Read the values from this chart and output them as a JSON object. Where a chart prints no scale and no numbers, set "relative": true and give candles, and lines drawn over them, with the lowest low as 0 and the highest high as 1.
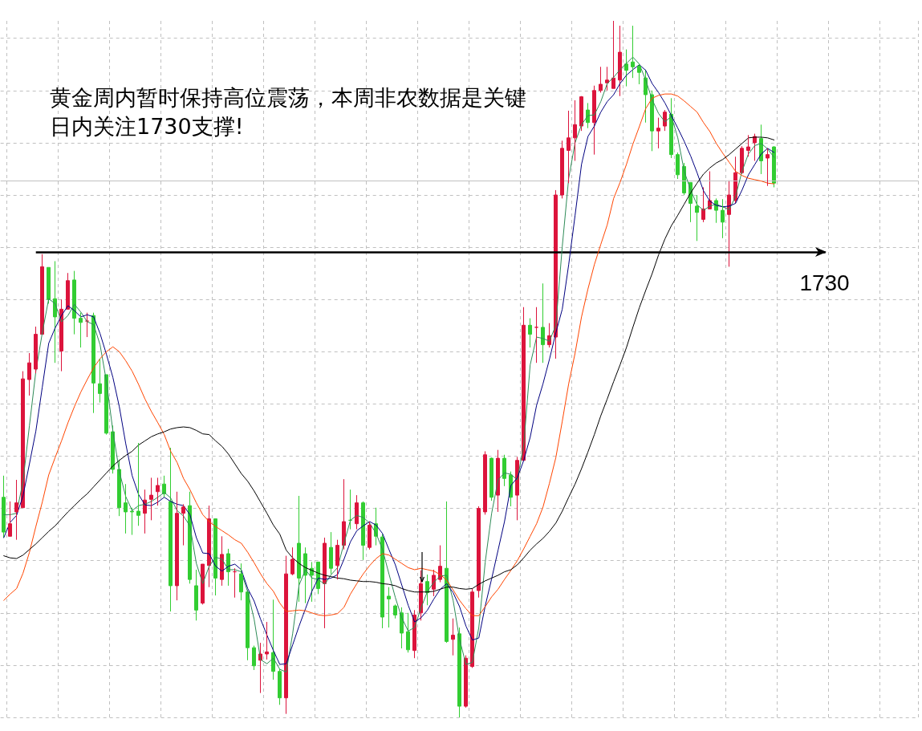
{
  "chart_data": {
    "type": "candlestick",
    "relative": true,
    "grid": true,
    "marker": "none",
    "annotations": [
      "黄金周内暂时保持高位震荡，本周非农数据是关键",
      "日内关注1730支撑!",
      "1730"
    ],
    "categories": [
      null,
      null,
      null,
      null,
      null,
      null,
      null,
      null,
      null,
      null,
      null,
      null,
      null,
      null,
      null,
      null,
      null,
      null,
      null,
      null,
      null,
      null,
      null,
      null,
      null,
      null,
      null,
      null,
      null,
      null,
      null,
      null,
      null,
      null,
      null,
      null,
      null,
      null,
      null,
      null,
      null,
      null,
      null,
      null,
      null,
      null,
      null,
      null,
      null,
      null,
      null,
      null,
      null,
      null,
      null,
      null,
      null,
      null,
      null,
      null,
      null,
      null,
      null,
      null,
      null,
      null,
      null,
      null,
      null,
      null,
      null,
      null,
      null,
      null,
      null,
      null,
      null,
      null,
      null,
      null,
      null,
      null,
      null,
      null,
      null,
      null,
      null,
      null,
      null,
      null,
      null,
      null,
      null,
      null,
      null,
      null,
      null,
      null,
      null,
      null,
      null,
      null,
      null,
      null,
      null,
      null,
      null,
      null,
      null,
      null,
      null,
      null,
      null,
      null,
      null,
      null,
      null,
      null,
      null,
      null,
      null,
      null,
      null,
      null,
      null,
      null,
      null,
      null,
      null,
      null,
      null,
      null,
      null,
      null,
      null,
      null,
      null,
      null,
      null,
      null,
      null,
      null,
      null
    ],
    "ohlc": [
      [
        0.316,
        0.347,
        0.258,
        0.266
      ],
      [
        0.26,
        0.31,
        0.26,
        0.278
      ],
      [
        0.295,
        0.341,
        0.255,
        0.308
      ],
      [
        0.301,
        0.497,
        0.301,
        0.486
      ],
      [
        0.485,
        0.523,
        0.462,
        0.509
      ],
      [
        0.5,
        0.561,
        0.494,
        0.55
      ],
      [
        0.55,
        0.665,
        0.55,
        0.647
      ],
      [
        0.646,
        0.646,
        0.594,
        0.6
      ],
      [
        0.601,
        0.655,
        0.509,
        0.575
      ],
      [
        0.526,
        0.6,
        0.497,
        0.586
      ],
      [
        0.586,
        0.638,
        0.586,
        0.627
      ],
      [
        0.628,
        0.641,
        0.55,
        0.573
      ],
      [
        0.573,
        0.581,
        0.531,
        0.567
      ],
      [
        0.569,
        0.581,
        0.546,
        0.569
      ],
      [
        0.577,
        0.581,
        0.437,
        0.48
      ],
      [
        0.479,
        0.515,
        0.452,
        0.465
      ],
      [
        0.492,
        0.492,
        0.406,
        0.408
      ],
      [
        0.41,
        0.419,
        0.35,
        0.356
      ],
      [
        0.356,
        0.37,
        0.289,
        0.301
      ],
      [
        0.308,
        0.335,
        0.264,
        0.295
      ],
      [
        0.296,
        0.301,
        0.262,
        0.295
      ],
      [
        0.296,
        0.394,
        0.275,
        0.29
      ],
      [
        0.293,
        0.327,
        0.264,
        0.312
      ],
      [
        0.313,
        0.344,
        0.283,
        0.319
      ],
      [
        0.324,
        0.344,
        0.304,
        0.333
      ],
      [
        0.335,
        0.347,
        0.316,
        0.321
      ],
      [
        0.31,
        0.387,
        0.152,
        0.189
      ],
      [
        0.189,
        0.324,
        0.168,
        0.293
      ],
      [
        0.293,
        0.306,
        0.247,
        0.302
      ],
      [
        0.304,
        0.324,
        0.192,
        0.198
      ],
      [
        0.189,
        0.212,
        0.139,
        0.154
      ],
      [
        0.164,
        0.22,
        0.162,
        0.22
      ],
      [
        0.218,
        0.304,
        0.187,
        0.285
      ],
      [
        0.285,
        0.285,
        0.175,
        0.2
      ],
      [
        0.198,
        0.26,
        0.189,
        0.234
      ],
      [
        0.235,
        0.242,
        0.189,
        0.209
      ],
      [
        0.209,
        0.214,
        0.172,
        0.209
      ],
      [
        0.206,
        0.221,
        0.168,
        0.18
      ],
      [
        0.18,
        0.183,
        0.082,
        0.1
      ],
      [
        0.1,
        0.103,
        0.068,
        0.074
      ],
      [
        0.082,
        0.107,
        0.035,
        0.091
      ],
      [
        0.091,
        0.137,
        0.083,
        0.094
      ],
      [
        0.093,
        0.169,
        0.054,
        0.066
      ],
      [
        0.066,
        0.07,
        0.018,
        0.028
      ],
      [
        0.028,
        0.232,
        0.005,
        0.206
      ],
      [
        0.206,
        0.244,
        0.204,
        0.227
      ],
      [
        0.25,
        0.318,
        0.166,
        0.2
      ],
      [
        0.235,
        0.244,
        0.164,
        0.204
      ],
      [
        0.214,
        0.223,
        0.166,
        0.204
      ],
      [
        0.223,
        0.223,
        0.177,
        0.185
      ],
      [
        0.192,
        0.258,
        0.128,
        0.25
      ],
      [
        0.244,
        0.266,
        0.206,
        0.214
      ],
      [
        0.218,
        0.255,
        0.198,
        0.247
      ],
      [
        0.247,
        0.342,
        0.241,
        0.281
      ],
      [
        0.283,
        0.327,
        0.27,
        0.283
      ],
      [
        0.278,
        0.319,
        0.27,
        0.308
      ],
      [
        0.308,
        0.31,
        0.226,
        0.247
      ],
      [
        0.244,
        0.281,
        0.241,
        0.276
      ],
      [
        0.278,
        0.301,
        0.247,
        0.26
      ],
      [
        0.259,
        0.263,
        0.128,
        0.144
      ],
      [
        0.174,
        0.187,
        0.129,
        0.17
      ],
      [
        0.16,
        0.162,
        0.142,
        0.147
      ],
      [
        0.15,
        0.158,
        0.099,
        0.121
      ],
      [
        0.123,
        0.15,
        0.093,
        0.097
      ],
      [
        0.096,
        0.154,
        0.085,
        0.147
      ],
      [
        0.15,
        0.211,
        0.139,
        0.192
      ],
      [
        0.195,
        0.205,
        0.161,
        0.179
      ],
      [
        0.184,
        0.212,
        0.174,
        0.204
      ],
      [
        0.198,
        0.247,
        0.194,
        0.217
      ],
      [
        0.214,
        0.31,
        0.107,
        0.109
      ],
      [
        0.112,
        0.142,
        0.089,
        0.118
      ],
      [
        0.12,
        0.129,
        0,
        0.016
      ],
      [
        0.016,
        0.089,
        0.014,
        0.085
      ],
      [
        0.073,
        0.185,
        0.071,
        0.18
      ],
      [
        0.182,
        0.303,
        0.172,
        0.3
      ],
      [
        0.295,
        0.382,
        0.291,
        0.377
      ],
      [
        0.372,
        0.373,
        0.311,
        0.316
      ],
      [
        0.319,
        0.384,
        0.295,
        0.372
      ],
      [
        0.372,
        0.377,
        0.332,
        0.343
      ],
      [
        0.348,
        0.353,
        0.303,
        0.316
      ],
      [
        0.319,
        0.374,
        0.283,
        0.369
      ],
      [
        0.369,
        0.589,
        0.369,
        0.563
      ],
      [
        0.563,
        0.573,
        0.531,
        0.55
      ],
      [
        0.56,
        0.589,
        0.509,
        0.56
      ],
      [
        0.56,
        0.623,
        0.509,
        0.535
      ],
      [
        0.535,
        0.566,
        0.531,
        0.548
      ],
      [
        0.546,
        0.757,
        0.515,
        0.75
      ],
      [
        0.75,
        0.828,
        0.745,
        0.817
      ],
      [
        0.814,
        0.871,
        0.767,
        0.832
      ],
      [
        0.832,
        0.886,
        0.799,
        0.851
      ],
      [
        0.849,
        0.892,
        0.842,
        0.891
      ],
      [
        0.872,
        0.882,
        0.846,
        0.854
      ],
      [
        0.854,
        0.907,
        0.808,
        0.9
      ],
      [
        0.9,
        0.934,
        0.897,
        0.909
      ],
      [
        0.911,
        0.934,
        0.9,
        0.915
      ],
      [
        0.903,
        1,
        0.903,
        0.918
      ],
      [
        0.915,
        0.993,
        0.892,
        0.955
      ],
      [
        0.938,
        0.959,
        0.906,
        0.929
      ],
      [
        0.941,
        0.993,
        0.918,
        0.934
      ],
      [
        0.935,
        0.938,
        0.909,
        0.926
      ],
      [
        0.918,
        0.93,
        0.854,
        0.894
      ],
      [
        0.894,
        0.9,
        0.813,
        0.842
      ],
      [
        0.842,
        0.861,
        0.817,
        0.846
      ],
      [
        0.849,
        0.872,
        0.842,
        0.869
      ],
      [
        0.866,
        0.889,
        0.803,
        0.808
      ],
      [
        0.808,
        0.811,
        0.773,
        0.779
      ],
      [
        0.791,
        0.796,
        0.75,
        0.753
      ],
      [
        0.768,
        0.768,
        0.711,
        0.738
      ],
      [
        0.734,
        0.75,
        0.684,
        0.725
      ],
      [
        0.715,
        0.761,
        0.711,
        0.73
      ],
      [
        0.73,
        0.784,
        0.73,
        0.742
      ],
      [
        0.742,
        0.745,
        0.71,
        0.728
      ],
      [
        0.728,
        0.744,
        0.688,
        0.711
      ],
      [
        0.722,
        0.771,
        0.647,
        0.75
      ],
      [
        0.742,
        0.805,
        0.738,
        0.782
      ],
      [
        0.782,
        0.82,
        0.78,
        0.817
      ],
      [
        0.814,
        0.836,
        0.805,
        0.819
      ],
      [
        0.825,
        0.838,
        0.799,
        0.834
      ],
      [
        0.831,
        0.851,
        0.78,
        0.799
      ],
      [
        0.803,
        0.817,
        0.763,
        0.808
      ],
      [
        0.819,
        0.82,
        0.761,
        0.767
      ],
      null,
      null,
      null,
      null,
      null,
      null,
      null,
      null,
      null,
      null,
      null,
      null,
      null,
      null,
      null,
      null,
      null,
      null,
      null,
      null,
      null,
      null
    ],
    "colors": [
      "#32cd32",
      "#dc143c",
      "#dc143c",
      "#dc143c",
      "#dc143c",
      "#dc143c",
      "#dc143c",
      "#32cd32",
      "#32cd32",
      "#dc143c",
      "#dc143c",
      "#32cd32",
      "#32cd32",
      "#dc143c",
      "#32cd32",
      "#32cd32",
      "#32cd32",
      "#32cd32",
      "#32cd32",
      "#32cd32",
      "#32cd32",
      "#32cd32",
      "#dc143c",
      "#dc143c",
      "#dc143c",
      "#32cd32",
      "#32cd32",
      "#dc143c",
      "#dc143c",
      "#32cd32",
      "#32cd32",
      "#dc143c",
      "#dc143c",
      "#32cd32",
      "#dc143c",
      "#32cd32",
      "#dc143c",
      "#32cd32",
      "#32cd32",
      "#32cd32",
      "#dc143c",
      "#dc143c",
      "#32cd32",
      "#32cd32",
      "#dc143c",
      "#dc143c",
      "#32cd32",
      "#32cd32",
      "#32cd32",
      "#32cd32",
      "#dc143c",
      "#32cd32",
      "#dc143c",
      "#dc143c",
      "#32cd32",
      "#dc143c",
      "#32cd32",
      "#dc143c",
      "#32cd32",
      "#32cd32",
      "#32cd32",
      "#32cd32",
      "#32cd32",
      "#32cd32",
      "#dc143c",
      "#dc143c",
      "#32cd32",
      "#dc143c",
      "#dc143c",
      "#32cd32",
      "#dc143c",
      "#32cd32",
      "#dc143c",
      "#dc143c",
      "#dc143c",
      "#dc143c",
      "#32cd32",
      "#dc143c",
      "#32cd32",
      "#32cd32",
      "#dc143c",
      "#dc143c",
      "#32cd32",
      "#dc143c",
      "#32cd32",
      "#dc143c",
      "#dc143c",
      "#dc143c",
      "#dc143c",
      "#dc143c",
      "#dc143c",
      "#32cd32",
      "#dc143c",
      "#dc143c",
      "#dc143c",
      "#dc143c",
      "#dc143c",
      "#32cd32",
      "#32cd32",
      "#32cd32",
      "#32cd32",
      "#32cd32",
      "#dc143c",
      "#dc143c",
      "#32cd32",
      "#32cd32",
      "#32cd32",
      "#32cd32",
      "#32cd32",
      "#dc143c",
      "#dc143c",
      "#32cd32",
      "#32cd32",
      "#dc143c",
      "#dc143c",
      "#dc143c",
      "#dc143c",
      "#dc143c",
      "#32cd32",
      "#dc143c",
      "#32cd32",
      null,
      null,
      null,
      null,
      null,
      null,
      null,
      null,
      null,
      null,
      null,
      null,
      null,
      null,
      null,
      null,
      null,
      null,
      null,
      null,
      null,
      null
    ],
    "series": [
      {
        "type": "line",
        "color": "#2e8b57",
        "values": [
          0.291,
          0.291,
          0.293,
          0.339,
          0.419,
          0.497,
          0.552,
          0.601,
          0.594,
          0.568,
          0.577,
          0.593,
          0.582,
          0.568,
          0.564,
          0.535,
          0.482,
          0.411,
          0.353,
          0.317,
          0.297,
          0.304,
          0.306,
          0.31,
          0.316,
          0.323,
          0.315,
          0.297,
          0.289,
          0.275,
          0.221,
          0.192,
          0.217,
          0.23,
          0.227,
          0.212,
          0.212,
          0.209,
          0.18,
          0.141,
          0.083,
          0.077,
          0.085,
          0.069,
          0.065,
          0.12,
          0.19,
          0.212,
          0.2,
          0.198,
          0.191,
          0.205,
          0.215,
          0.25,
          0.283,
          0.29,
          0.287,
          0.279,
          0.264,
          0.241,
          0.206,
          0.172,
          0.143,
          0.124,
          0.129,
          0.157,
          0.181,
          0.194,
          0.203,
          0.204,
          0.168,
          0.112,
          0.076,
          0.079,
          0.129,
          0.223,
          0.293,
          0.341,
          0.351,
          0.349,
          0.341,
          0.391,
          0.506,
          0.546,
          0.544,
          0.54,
          0.563,
          0.676,
          0.774,
          0.825,
          0.851,
          0.864,
          0.865,
          0.884,
          0.91,
          0.919,
          0.93,
          0.939,
          0.948,
          0.938,
          0.915,
          0.887,
          0.867,
          0.855,
          0.863,
          0.832,
          0.784,
          0.757,
          0.736,
          0.728,
          0.734,
          0.737,
          0.733,
          0.729,
          0.748,
          0.784,
          0.809,
          0.821,
          0.824,
          0.816,
          0.804,
          null,
          null,
          null,
          null,
          null,
          null,
          null,
          null,
          null,
          null,
          null,
          null,
          null,
          null,
          null,
          null,
          null,
          null,
          null,
          null,
          null,
          null
        ]
      },
      {
        "type": "line",
        "color": "#000080",
        "values": [
          0.258,
          0.28,
          0.29,
          0.318,
          0.364,
          0.411,
          0.474,
          0.537,
          0.559,
          0.577,
          0.591,
          0.584,
          0.575,
          0.578,
          0.575,
          0.551,
          0.521,
          0.488,
          0.446,
          0.393,
          0.347,
          0.32,
          0.305,
          0.304,
          0.309,
          0.316,
          0.31,
          0.306,
          0.304,
          0.291,
          0.258,
          0.236,
          0.235,
          0.217,
          0.21,
          0.217,
          0.22,
          0.212,
          0.185,
          0.167,
          0.141,
          0.118,
          0.096,
          0.076,
          0.077,
          0.104,
          0.131,
          0.156,
          0.181,
          0.2,
          0.198,
          0.2,
          0.205,
          0.227,
          0.252,
          0.268,
          0.275,
          0.281,
          0.276,
          0.264,
          0.241,
          0.219,
          0.19,
          0.161,
          0.137,
          0.143,
          0.154,
          0.17,
          0.184,
          0.192,
          0.179,
          0.159,
          0.131,
          0.111,
          0.114,
          0.16,
          0.199,
          0.24,
          0.281,
          0.333,
          0.344,
          0.369,
          0.402,
          0.448,
          0.479,
          0.514,
          0.552,
          0.586,
          0.65,
          0.721,
          0.794,
          0.834,
          0.849,
          0.869,
          0.884,
          0.894,
          0.91,
          0.922,
          0.93,
          0.937,
          0.929,
          0.91,
          0.897,
          0.882,
          0.864,
          0.846,
          0.827,
          0.806,
          0.782,
          0.756,
          0.741,
          0.735,
          0.733,
          0.734,
          0.738,
          0.757,
          0.779,
          0.794,
          0.809,
          0.817,
          0.811,
          null,
          null,
          null,
          null,
          null,
          null,
          null,
          null,
          null,
          null,
          null,
          null,
          null,
          null,
          null,
          null,
          null,
          null,
          null,
          null,
          null,
          null
        ]
      },
      {
        "type": "line",
        "color": "#ff4500",
        "values": [
          0.168,
          0.177,
          0.185,
          0.207,
          0.237,
          0.274,
          0.309,
          0.348,
          0.373,
          0.397,
          0.423,
          0.446,
          0.467,
          0.485,
          0.502,
          0.515,
          0.525,
          0.532,
          0.525,
          0.512,
          0.497,
          0.478,
          0.457,
          0.439,
          0.423,
          0.406,
          0.382,
          0.366,
          0.343,
          0.327,
          0.308,
          0.291,
          0.281,
          0.274,
          0.268,
          0.262,
          0.255,
          0.25,
          0.237,
          0.222,
          0.206,
          0.192,
          0.181,
          0.164,
          0.152,
          0.153,
          0.154,
          0.153,
          0.15,
          0.147,
          0.146,
          0.147,
          0.149,
          0.158,
          0.177,
          0.192,
          0.206,
          0.218,
          0.228,
          0.235,
          0.233,
          0.227,
          0.221,
          0.215,
          0.212,
          0.214,
          0.212,
          0.21,
          0.205,
          0.197,
          0.183,
          0.168,
          0.156,
          0.146,
          0.146,
          0.159,
          0.173,
          0.184,
          0.198,
          0.211,
          0.225,
          0.242,
          0.26,
          0.278,
          0.302,
          0.336,
          0.373,
          0.425,
          0.479,
          0.523,
          0.575,
          0.615,
          0.65,
          0.679,
          0.707,
          0.745,
          0.768,
          0.794,
          0.823,
          0.848,
          0.874,
          0.889,
          0.893,
          0.895,
          0.895,
          0.892,
          0.885,
          0.877,
          0.869,
          0.854,
          0.841,
          0.824,
          0.81,
          0.797,
          0.784,
          0.778,
          0.774,
          0.772,
          0.77,
          0.767,
          0.766,
          null,
          null,
          null,
          null,
          null,
          null,
          null,
          null,
          null,
          null,
          null,
          null,
          null,
          null,
          null,
          null,
          null,
          null,
          null,
          null,
          null,
          null
        ]
      },
      {
        "type": "line",
        "color": "#000000",
        "values": [
          0.232,
          0.229,
          0.228,
          0.233,
          0.241,
          0.249,
          0.258,
          0.267,
          0.275,
          0.285,
          0.295,
          0.304,
          0.313,
          0.321,
          0.331,
          0.341,
          0.351,
          0.361,
          0.369,
          0.376,
          0.382,
          0.391,
          0.397,
          0.403,
          0.407,
          0.41,
          0.414,
          0.416,
          0.417,
          0.416,
          0.412,
          0.407,
          0.406,
          0.397,
          0.389,
          0.378,
          0.364,
          0.35,
          0.339,
          0.325,
          0.309,
          0.293,
          0.276,
          0.263,
          0.24,
          0.229,
          0.221,
          0.215,
          0.211,
          0.207,
          0.204,
          0.202,
          0.2,
          0.199,
          0.197,
          0.196,
          0.195,
          0.195,
          0.194,
          0.192,
          0.191,
          0.189,
          0.185,
          0.182,
          0.18,
          0.18,
          0.18,
          0.181,
          0.184,
          0.187,
          0.187,
          0.185,
          0.184,
          0.185,
          0.191,
          0.196,
          0.2,
          0.204,
          0.209,
          0.212,
          0.219,
          0.229,
          0.24,
          0.249,
          0.257,
          0.267,
          0.279,
          0.296,
          0.316,
          0.335,
          0.357,
          0.381,
          0.406,
          0.433,
          0.457,
          0.482,
          0.506,
          0.531,
          0.56,
          0.588,
          0.613,
          0.637,
          0.664,
          0.687,
          0.706,
          0.721,
          0.737,
          0.753,
          0.767,
          0.78,
          0.789,
          0.796,
          0.801,
          0.808,
          0.816,
          0.824,
          0.832,
          0.833,
          0.833,
          0.832,
          0.829,
          null,
          null,
          null,
          null,
          null,
          null,
          null,
          null,
          null,
          null,
          null,
          null,
          null,
          null,
          null,
          null,
          null,
          null,
          null,
          null,
          null,
          null
        ]
      }
    ],
    "ref_lines": [
      {
        "axis": "y",
        "value": 0.668,
        "color": "#000000"
      },
      {
        "axis": "y",
        "value": 0.767,
        "color": "#c0c0c0"
      }
    ]
  }
}
